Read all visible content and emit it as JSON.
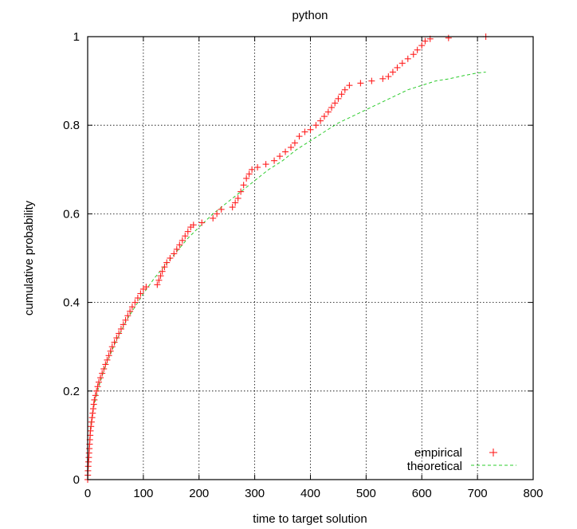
{
  "chart_data": {
    "type": "scatter",
    "title": "python",
    "xlabel": "time to target solution",
    "ylabel": "cumulative probability",
    "xlim": [
      0,
      800
    ],
    "ylim": [
      0,
      1
    ],
    "x_ticks": [
      0,
      100,
      200,
      300,
      400,
      500,
      600,
      700,
      800
    ],
    "y_ticks": [
      0,
      0.2,
      0.4,
      0.6,
      0.8,
      1
    ],
    "x_tick_labels": [
      "0",
      "100",
      "200",
      "300",
      "400",
      "500",
      "600",
      "700",
      "800"
    ],
    "y_tick_labels": [
      "0",
      "0.2",
      "0.4",
      "0.6",
      "0.8",
      "1"
    ],
    "grid": true,
    "legend_position": "bottom-right",
    "series": [
      {
        "name": "empirical",
        "marker": "plus",
        "color": "#ff1f1f",
        "points": [
          [
            0,
            0.0
          ],
          [
            0.3,
            0.01
          ],
          [
            0.6,
            0.02
          ],
          [
            1,
            0.03
          ],
          [
            1.5,
            0.04
          ],
          [
            2,
            0.05
          ],
          [
            2.5,
            0.06
          ],
          [
            3,
            0.07
          ],
          [
            3.5,
            0.08
          ],
          [
            4,
            0.09
          ],
          [
            4.5,
            0.1
          ],
          [
            5,
            0.11
          ],
          [
            6,
            0.12
          ],
          [
            7,
            0.13
          ],
          [
            8,
            0.14
          ],
          [
            9,
            0.15
          ],
          [
            10,
            0.16
          ],
          [
            11,
            0.17
          ],
          [
            12,
            0.18
          ],
          [
            14,
            0.19
          ],
          [
            16,
            0.2
          ],
          [
            18,
            0.21
          ],
          [
            20,
            0.22
          ],
          [
            23,
            0.23
          ],
          [
            26,
            0.24
          ],
          [
            29,
            0.25
          ],
          [
            32,
            0.26
          ],
          [
            35,
            0.27
          ],
          [
            38,
            0.28
          ],
          [
            41,
            0.29
          ],
          [
            44,
            0.3
          ],
          [
            48,
            0.31
          ],
          [
            52,
            0.32
          ],
          [
            56,
            0.33
          ],
          [
            60,
            0.34
          ],
          [
            64,
            0.35
          ],
          [
            68,
            0.36
          ],
          [
            72,
            0.37
          ],
          [
            76,
            0.38
          ],
          [
            80,
            0.39
          ],
          [
            85,
            0.4
          ],
          [
            90,
            0.41
          ],
          [
            95,
            0.42
          ],
          [
            100,
            0.43
          ],
          [
            105,
            0.435
          ],
          [
            125,
            0.44
          ],
          [
            128,
            0.45
          ],
          [
            131,
            0.46
          ],
          [
            134,
            0.47
          ],
          [
            138,
            0.48
          ],
          [
            142,
            0.49
          ],
          [
            148,
            0.5
          ],
          [
            155,
            0.51
          ],
          [
            160,
            0.52
          ],
          [
            165,
            0.53
          ],
          [
            170,
            0.54
          ],
          [
            175,
            0.55
          ],
          [
            180,
            0.56
          ],
          [
            185,
            0.57
          ],
          [
            190,
            0.575
          ],
          [
            205,
            0.58
          ],
          [
            225,
            0.59
          ],
          [
            232,
            0.6
          ],
          [
            240,
            0.61
          ],
          [
            260,
            0.615
          ],
          [
            265,
            0.625
          ],
          [
            270,
            0.635
          ],
          [
            275,
            0.65
          ],
          [
            280,
            0.665
          ],
          [
            285,
            0.68
          ],
          [
            290,
            0.69
          ],
          [
            295,
            0.7
          ],
          [
            305,
            0.705
          ],
          [
            320,
            0.712
          ],
          [
            335,
            0.72
          ],
          [
            345,
            0.73
          ],
          [
            355,
            0.74
          ],
          [
            365,
            0.75
          ],
          [
            372,
            0.76
          ],
          [
            380,
            0.775
          ],
          [
            390,
            0.785
          ],
          [
            400,
            0.79
          ],
          [
            410,
            0.8
          ],
          [
            418,
            0.81
          ],
          [
            425,
            0.82
          ],
          [
            432,
            0.83
          ],
          [
            438,
            0.84
          ],
          [
            444,
            0.85
          ],
          [
            450,
            0.86
          ],
          [
            456,
            0.87
          ],
          [
            462,
            0.88
          ],
          [
            470,
            0.89
          ],
          [
            490,
            0.895
          ],
          [
            510,
            0.9
          ],
          [
            530,
            0.905
          ],
          [
            540,
            0.91
          ],
          [
            548,
            0.92
          ],
          [
            556,
            0.93
          ],
          [
            565,
            0.94
          ],
          [
            575,
            0.95
          ],
          [
            585,
            0.96
          ],
          [
            592,
            0.97
          ],
          [
            600,
            0.98
          ],
          [
            606,
            0.99
          ],
          [
            615,
            0.995
          ],
          [
            648,
            0.997
          ],
          [
            715,
            1.0
          ]
        ]
      },
      {
        "name": "theoretical",
        "style": "dashed",
        "color": "#2ecc2e",
        "points": [
          [
            0,
            0.0
          ],
          [
            5,
            0.12
          ],
          [
            10,
            0.16
          ],
          [
            20,
            0.21
          ],
          [
            30,
            0.25
          ],
          [
            40,
            0.28
          ],
          [
            50,
            0.31
          ],
          [
            60,
            0.335
          ],
          [
            70,
            0.36
          ],
          [
            80,
            0.38
          ],
          [
            100,
            0.42
          ],
          [
            120,
            0.455
          ],
          [
            140,
            0.485
          ],
          [
            160,
            0.515
          ],
          [
            180,
            0.545
          ],
          [
            200,
            0.57
          ],
          [
            225,
            0.6
          ],
          [
            250,
            0.625
          ],
          [
            275,
            0.65
          ],
          [
            300,
            0.675
          ],
          [
            325,
            0.7
          ],
          [
            350,
            0.72
          ],
          [
            375,
            0.745
          ],
          [
            400,
            0.765
          ],
          [
            425,
            0.785
          ],
          [
            450,
            0.805
          ],
          [
            475,
            0.82
          ],
          [
            500,
            0.835
          ],
          [
            525,
            0.85
          ],
          [
            550,
            0.865
          ],
          [
            575,
            0.88
          ],
          [
            600,
            0.89
          ],
          [
            625,
            0.9
          ],
          [
            650,
            0.905
          ],
          [
            675,
            0.912
          ],
          [
            700,
            0.918
          ],
          [
            715,
            0.92
          ]
        ]
      }
    ]
  }
}
